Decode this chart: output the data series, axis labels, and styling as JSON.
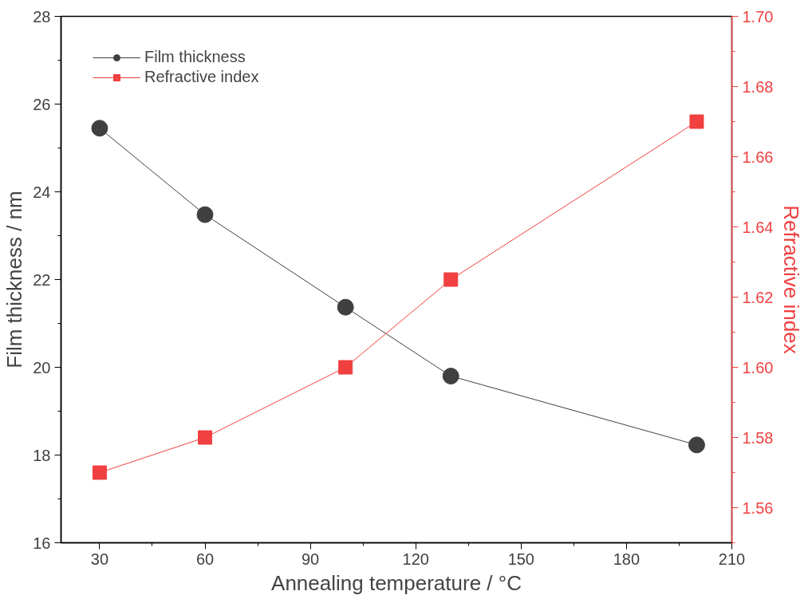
{
  "chart_data": {
    "type": "line",
    "xlabel": "Annealing temperature / °C",
    "ylabel": "Film thickness / nm",
    "y2label": "Refractive index",
    "x": [
      30,
      60,
      100,
      130,
      200
    ],
    "series": [
      {
        "name": "Film thickness",
        "color": "#404040",
        "values": [
          25.45,
          23.48,
          21.37,
          19.8,
          18.23
        ],
        "marker": "circle"
      },
      {
        "name": "Refractive index",
        "color": "#f04040",
        "values": [
          1.57,
          1.58,
          1.6,
          1.625,
          1.67
        ],
        "marker": "square",
        "axis": "y2"
      }
    ],
    "xlim": [
      19,
      210
    ],
    "xticks": [
      30,
      60,
      90,
      120,
      150,
      180,
      210
    ],
    "ylim": [
      16,
      28
    ],
    "yticks": [
      16,
      18,
      20,
      22,
      24,
      26,
      28
    ],
    "y2lim": [
      1.55,
      1.7
    ],
    "y2ticks": [
      1.56,
      1.58,
      {
        "value": 1.6,
        "label": "1.60"
      },
      1.62,
      1.64,
      1.66,
      1.68,
      {
        "value": 1.7,
        "label": "1.70"
      }
    ],
    "grid": false,
    "legend": "top left",
    "line_style": "solid"
  }
}
